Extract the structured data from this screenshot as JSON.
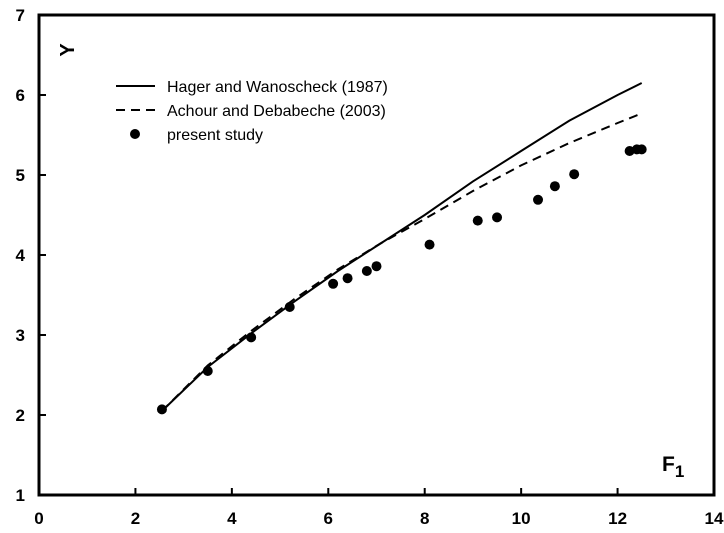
{
  "chart_data": {
    "type": "scatter",
    "xlabel": "F",
    "xlabel_subscript": "1",
    "ylabel": "Y",
    "xlim": [
      0,
      14
    ],
    "ylim": [
      1,
      7
    ],
    "xticks": [
      0,
      2,
      4,
      6,
      8,
      10,
      12,
      14
    ],
    "yticks": [
      1,
      2,
      3,
      4,
      5,
      6,
      7
    ],
    "grid": false,
    "legend_position": "top-left",
    "series": [
      {
        "name": "Hager and Wanoscheck (1987)",
        "kind": "line",
        "style": "solid",
        "x": [
          2.55,
          3.5,
          4.4,
          5.3,
          6.2,
          7.1,
          8.0,
          9.0,
          10.0,
          11.0,
          12.0,
          12.5
        ],
        "y": [
          2.05,
          2.6,
          3.02,
          3.42,
          3.8,
          4.15,
          4.5,
          4.92,
          5.3,
          5.68,
          6.0,
          6.15
        ]
      },
      {
        "name": "Achour and Debabeche (2003)",
        "kind": "line",
        "style": "dashed",
        "x": [
          2.55,
          3.5,
          4.4,
          5.3,
          6.2,
          7.1,
          8.0,
          9.0,
          10.0,
          11.0,
          12.0,
          12.5
        ],
        "y": [
          2.05,
          2.62,
          3.05,
          3.45,
          3.82,
          4.15,
          4.45,
          4.8,
          5.12,
          5.4,
          5.65,
          5.77
        ]
      },
      {
        "name": "present study",
        "kind": "scatter",
        "x": [
          2.55,
          3.5,
          4.4,
          5.2,
          6.1,
          6.4,
          6.8,
          7.0,
          8.1,
          9.1,
          9.5,
          10.35,
          10.7,
          11.1,
          12.25,
          12.4,
          12.5
        ],
        "y": [
          2.07,
          2.55,
          2.97,
          3.35,
          3.64,
          3.71,
          3.8,
          3.86,
          4.13,
          4.43,
          4.47,
          4.69,
          4.86,
          5.01,
          5.3,
          5.32,
          5.32
        ]
      }
    ]
  }
}
